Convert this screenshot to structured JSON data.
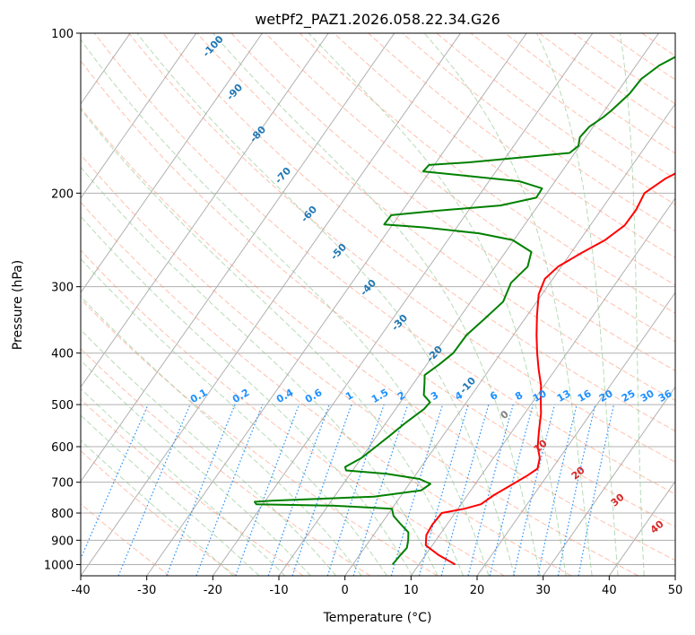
{
  "chart_data": {
    "type": "line",
    "title": "wetPf2_PAZ1.2026.058.22.34.G26",
    "xlabel": "Temperature (°C)",
    "ylabel": "Pressure (hPa)",
    "xlim": [
      -40,
      50
    ],
    "ylim": [
      1050,
      100
    ],
    "y_scale": "log",
    "grid": true,
    "x_ticks": [
      -40,
      -30,
      -20,
      -10,
      0,
      10,
      20,
      30,
      40,
      50
    ],
    "y_ticks": [
      100,
      200,
      300,
      400,
      500,
      600,
      700,
      800,
      900,
      1000
    ],
    "series": [
      {
        "color": "#ff0000",
        "points": [
          [
            15.5,
            1000
          ],
          [
            12,
            960
          ],
          [
            9,
            920
          ],
          [
            8,
            880
          ],
          [
            7.8,
            840
          ],
          [
            8,
            800
          ],
          [
            11,
            785
          ],
          [
            13,
            770
          ],
          [
            14,
            740
          ],
          [
            15.5,
            710
          ],
          [
            17,
            680
          ],
          [
            17.8,
            660
          ],
          [
            17,
            630
          ],
          [
            15.5,
            600
          ],
          [
            14,
            560
          ],
          [
            12.5,
            520
          ],
          [
            11,
            490
          ],
          [
            9.5,
            460
          ],
          [
            7.5,
            430
          ],
          [
            5.5,
            400
          ],
          [
            3.5,
            370
          ],
          [
            1.5,
            340
          ],
          [
            -0.5,
            310
          ],
          [
            -1.2,
            290
          ],
          [
            -0.5,
            275
          ],
          [
            1.5,
            260
          ],
          [
            3.8,
            245
          ],
          [
            5.2,
            230
          ],
          [
            5.3,
            215
          ],
          [
            4.8,
            200
          ],
          [
            6.4,
            188
          ],
          [
            9.2,
            176
          ],
          [
            9.8,
            165
          ],
          [
            10.5,
            150
          ],
          [
            11.9,
            138
          ],
          [
            13.3,
            128
          ],
          [
            14.1,
            120
          ],
          [
            14.6,
            113
          ],
          [
            15.8,
            106
          ],
          [
            17.2,
            100
          ]
        ]
      },
      {
        "color": "#008000",
        "points": [
          [
            6,
            1000
          ],
          [
            6.2,
            960
          ],
          [
            6.4,
            930
          ],
          [
            5.8,
            900
          ],
          [
            5,
            870
          ],
          [
            3,
            840
          ],
          [
            1,
            810
          ],
          [
            0,
            785
          ],
          [
            -9,
            775
          ],
          [
            -21,
            770
          ],
          [
            -21.5,
            762
          ],
          [
            -19,
            758
          ],
          [
            -4,
            745
          ],
          [
            2.5,
            725
          ],
          [
            3.2,
            705
          ],
          [
            1,
            690
          ],
          [
            -4.5,
            675
          ],
          [
            -11,
            665
          ],
          [
            -11.5,
            655
          ],
          [
            -10,
            630
          ],
          [
            -9,
            600
          ],
          [
            -8,
            570
          ],
          [
            -7,
            540
          ],
          [
            -5.7,
            510
          ],
          [
            -5.5,
            495
          ],
          [
            -7.2,
            480
          ],
          [
            -8.4,
            455
          ],
          [
            -9.2,
            440
          ],
          [
            -8.1,
            420
          ],
          [
            -7.2,
            400
          ],
          [
            -7.1,
            370
          ],
          [
            -6.1,
            345
          ],
          [
            -5.1,
            320
          ],
          [
            -5.9,
            295
          ],
          [
            -5.1,
            275
          ],
          [
            -6.1,
            258
          ],
          [
            -10.2,
            245
          ],
          [
            -16,
            238
          ],
          [
            -25,
            232
          ],
          [
            -31.3,
            229
          ],
          [
            -31.2,
            220
          ],
          [
            -25,
            216
          ],
          [
            -15.7,
            211
          ],
          [
            -11.1,
            204
          ],
          [
            -11.2,
            196
          ],
          [
            -15.4,
            190
          ],
          [
            -23,
            186
          ],
          [
            -31,
            182
          ],
          [
            -30.8,
            177
          ],
          [
            -25,
            175
          ],
          [
            -10.8,
            168
          ],
          [
            -10.2,
            163
          ],
          [
            -10.9,
            157
          ],
          [
            -10.6,
            150
          ],
          [
            -9.5,
            144
          ],
          [
            -9,
            140
          ],
          [
            -8,
            130
          ],
          [
            -7.8,
            122
          ],
          [
            -6.5,
            115
          ],
          [
            -3.9,
            108
          ],
          [
            0.5,
            100
          ]
        ]
      }
    ],
    "isotherm_labels": [
      "-100",
      "-90",
      "-80",
      "-70",
      "-60",
      "-50",
      "-40",
      "-30",
      "-20",
      "-10"
    ],
    "mixing_ratio_labels": [
      "0.1",
      "0.2",
      "0.4",
      "0.6",
      "1",
      "1.5",
      "2",
      "3",
      "4",
      "6",
      "8",
      "10",
      "13",
      "16",
      "20",
      "25",
      "30",
      "36"
    ],
    "adiabat_labels": [
      "0",
      "10",
      "20",
      "30",
      "40"
    ],
    "colors": {
      "temperature": "#ff0000",
      "dewpoint": "#008000",
      "isotherm_label": "#1f77b4",
      "mixing_ratio": "#1e90ff",
      "dry_adiabat": "#ff8c69",
      "moist_adiabat": "#90c890",
      "adiabat_label": "#d62728",
      "grid": "#b0b0b0"
    }
  }
}
